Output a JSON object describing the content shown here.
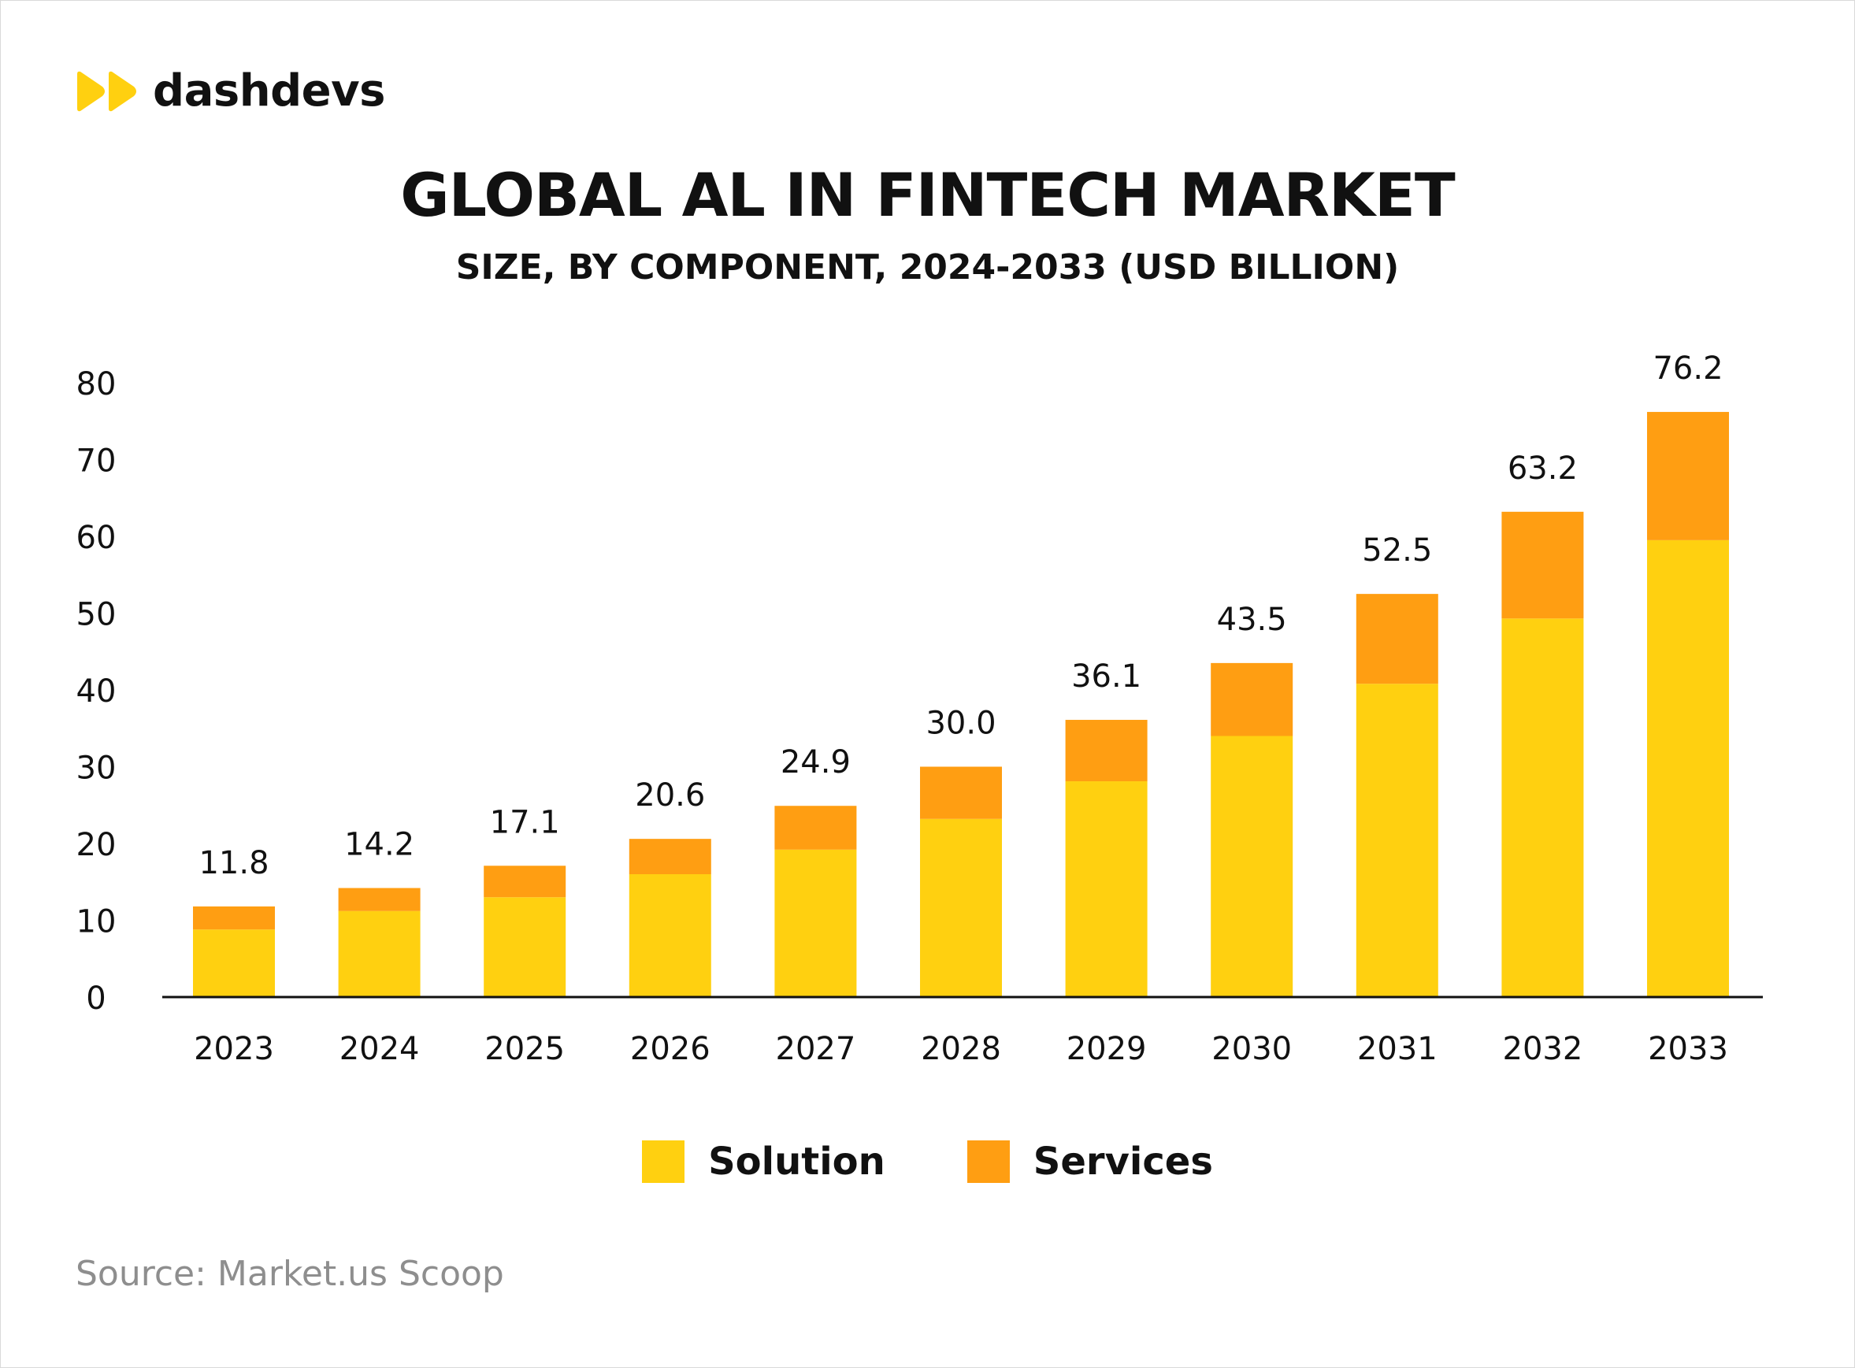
{
  "brand": {
    "name": "dashdevs",
    "accent": "#FFD010"
  },
  "header": {
    "title": "GLOBAL AL IN FINTECH MARKET",
    "subtitle": "SIZE, BY COMPONENT, 2024-2033 (USD BILLION)"
  },
  "legend": {
    "solution_label": "Solution",
    "services_label": "Services"
  },
  "source": "Source: Market.us Scoop",
  "colors": {
    "solution": "#FFD010",
    "services": "#FF9E12",
    "axis": "#111111"
  },
  "chart_data": {
    "type": "bar",
    "stacked": true,
    "title": "GLOBAL AL IN FINTECH MARKET",
    "subtitle": "SIZE, BY COMPONENT, 2024-2033 (USD BILLION)",
    "xlabel": "",
    "ylabel": "",
    "ylim": [
      0,
      80
    ],
    "yticks": [
      0,
      10,
      20,
      30,
      40,
      50,
      60,
      70,
      80
    ],
    "grid": false,
    "legend_position": "bottom",
    "categories": [
      "2023",
      "2024",
      "2025",
      "2026",
      "2027",
      "2028",
      "2029",
      "2030",
      "2031",
      "2032",
      "2033"
    ],
    "series": [
      {
        "name": "Solution",
        "color": "#FFD010",
        "values": [
          8.8,
          11.2,
          13.0,
          16.0,
          19.2,
          23.2,
          28.1,
          34.0,
          40.8,
          49.3,
          59.5
        ]
      },
      {
        "name": "Services",
        "color": "#FF9E12",
        "values": [
          3.0,
          3.0,
          4.1,
          4.6,
          5.7,
          6.8,
          8.0,
          9.5,
          11.7,
          13.9,
          16.7
        ]
      }
    ],
    "totals": [
      "11.8",
      "14.2",
      "17.1",
      "20.6",
      "24.9",
      "30.0",
      "36.1",
      "43.5",
      "52.5",
      "63.2",
      "76.2"
    ]
  }
}
